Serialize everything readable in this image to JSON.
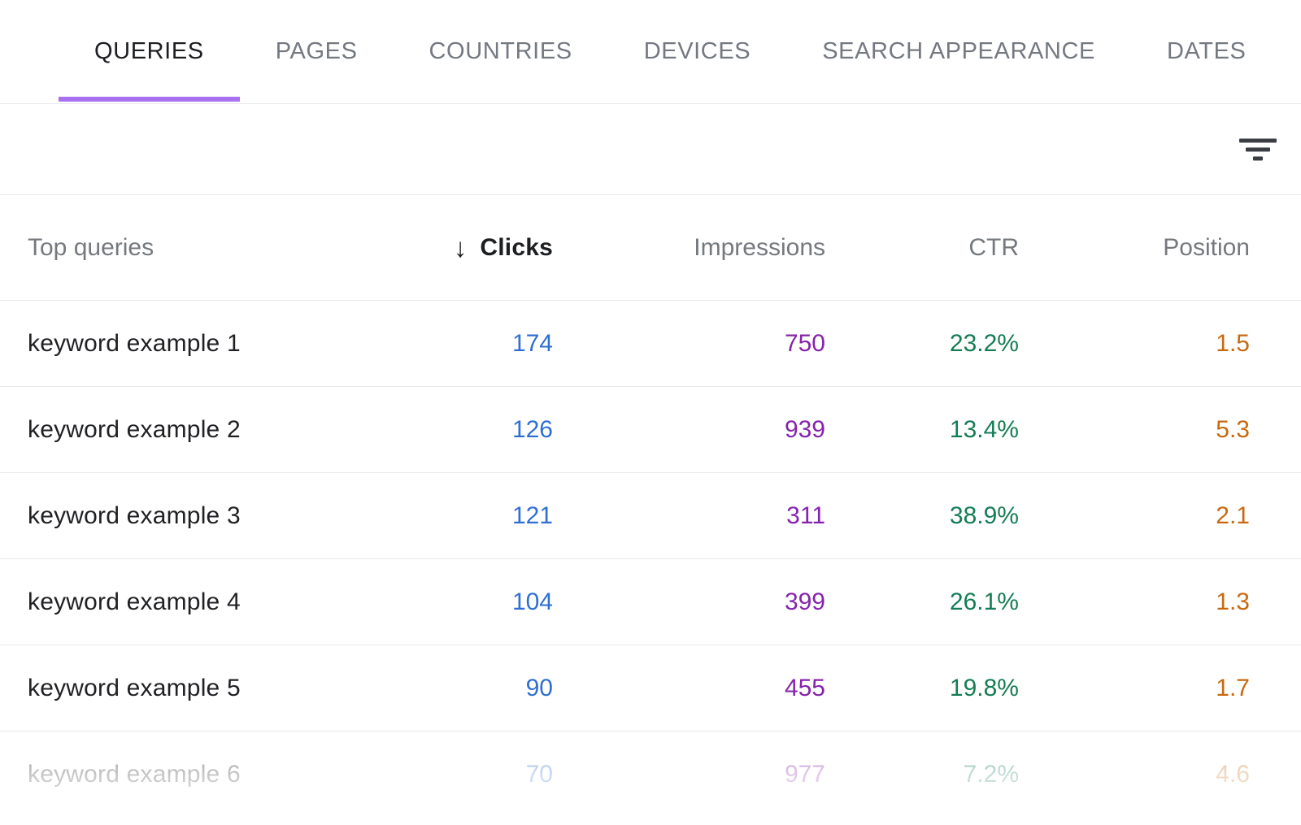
{
  "tabs": {
    "items": [
      {
        "label": "QUERIES",
        "active": true
      },
      {
        "label": "PAGES",
        "active": false
      },
      {
        "label": "COUNTRIES",
        "active": false
      },
      {
        "label": "DEVICES",
        "active": false
      },
      {
        "label": "SEARCH APPEARANCE",
        "active": false
      },
      {
        "label": "DATES",
        "active": false
      }
    ]
  },
  "toolbar": {
    "filter_icon": "filter-list-icon"
  },
  "table": {
    "columns": {
      "query": "Top queries",
      "clicks": "Clicks",
      "impressions": "Impressions",
      "ctr": "CTR",
      "position": "Position"
    },
    "sort": {
      "column": "Clicks",
      "direction": "descending",
      "icon": "arrow-down-icon",
      "glyph": "↓"
    },
    "rows": [
      {
        "query": "keyword example 1",
        "clicks": "174",
        "impressions": "750",
        "ctr": "23.2%",
        "position": "1.5"
      },
      {
        "query": "keyword example 2",
        "clicks": "126",
        "impressions": "939",
        "ctr": "13.4%",
        "position": "5.3"
      },
      {
        "query": "keyword example 3",
        "clicks": "121",
        "impressions": "311",
        "ctr": "38.9%",
        "position": "2.1"
      },
      {
        "query": "keyword example 4",
        "clicks": "104",
        "impressions": "399",
        "ctr": "26.1%",
        "position": "1.3"
      },
      {
        "query": "keyword example 5",
        "clicks": "90",
        "impressions": "455",
        "ctr": "19.8%",
        "position": "1.7"
      },
      {
        "query": "keyword example 6",
        "clicks": "70",
        "impressions": "977",
        "ctr": "7.2%",
        "position": "4.6"
      }
    ]
  },
  "colors": {
    "accent_purple": "#a771f0",
    "clicks_blue": "#2f6fd4",
    "impressions_purple": "#8623ae",
    "ctr_green": "#147d55",
    "position_orange": "#c8690f",
    "active_tab_text": "#1c1e21",
    "inactive_tab_text": "#747880",
    "header_text": "#75797e",
    "row_text": "#202124",
    "divider": "#ececec",
    "icon_gray": "#3a3d42"
  }
}
